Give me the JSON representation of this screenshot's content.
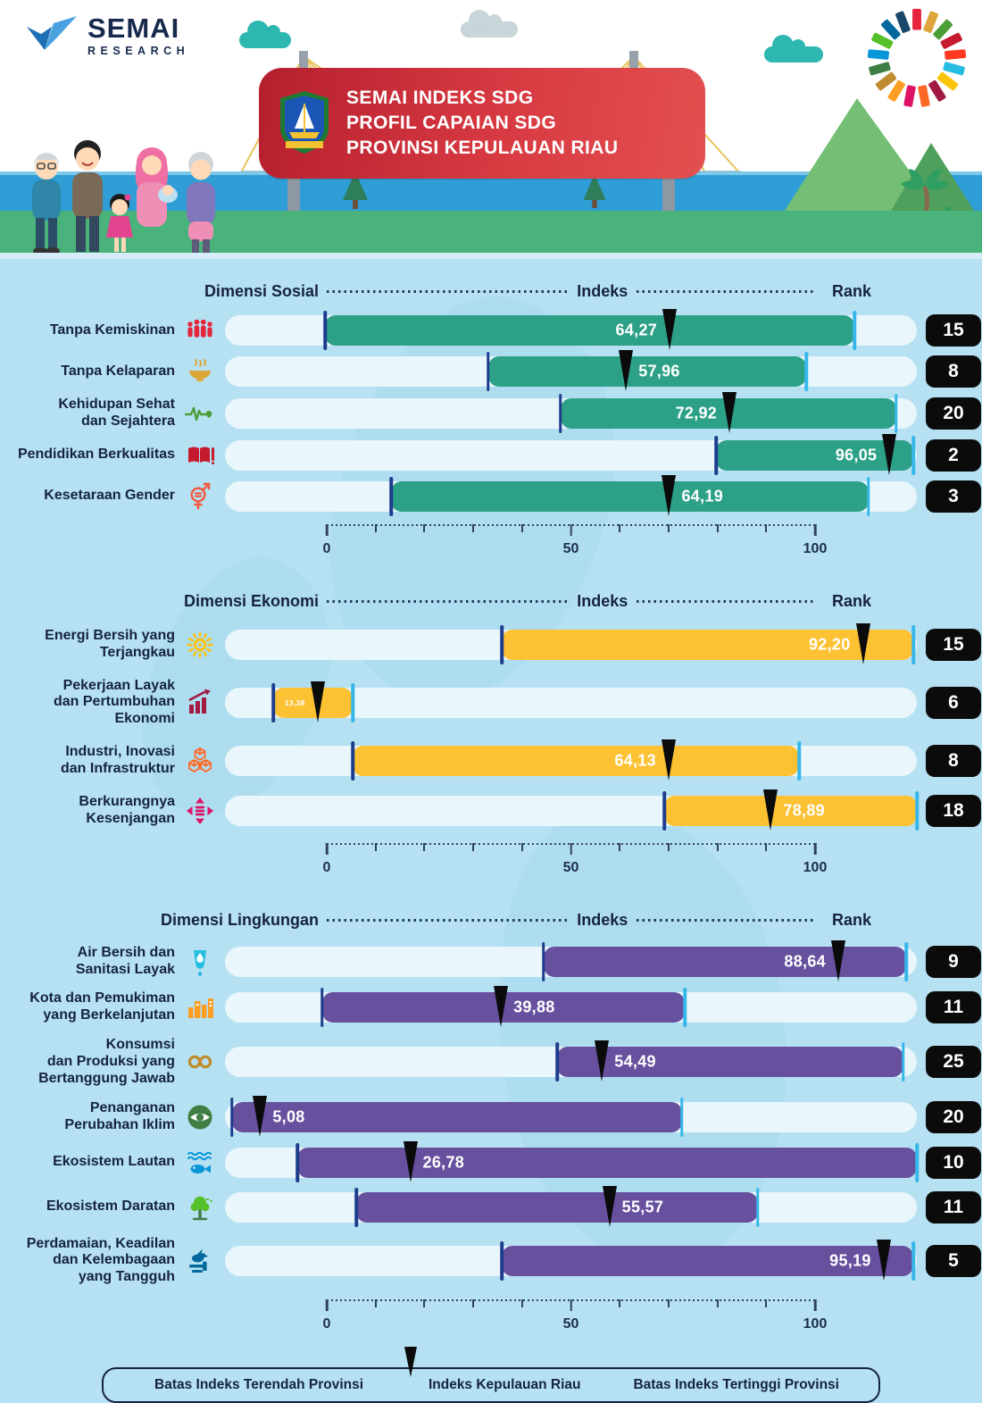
{
  "header": {
    "logo": {
      "title": "SEMAI",
      "subtitle": "RESEARCH"
    },
    "banner": {
      "lines": [
        "SEMAI INDEKS SDG",
        "PROFIL CAPAIAN SDG",
        "PROVINSI KEPULAUAN RIAU"
      ]
    }
  },
  "colors": {
    "page_bg": "#b5e1f2",
    "track": "#e9f6fb",
    "social_bar": "#2da188",
    "economy_bar": "#fcc233",
    "environment_bar": "#67519f",
    "low_tick": "#1e3c8c",
    "high_tick": "#36b7ea",
    "marker": "#0b0b0b",
    "badge_bg": "#0b0b0b",
    "banner_red": "#d83a42",
    "text_dark": "#16233f"
  },
  "legend": [
    {
      "icon": "low-tick-swatch",
      "label": "Batas Indeks Terendah Provinsi"
    },
    {
      "icon": "riau-marker-swatch",
      "label": "Indeks Kepulauan Riau"
    },
    {
      "icon": "high-tick-swatch",
      "label": "Batas Indeks Tertinggi Provinsi"
    }
  ],
  "chart_data": [
    {
      "type": "bar",
      "id": "sosial",
      "title": "Dimensi Sosial",
      "index_label": "Indeks",
      "rank_label": "Rank",
      "bar_color": "#2da188",
      "axis": {
        "min": 0,
        "max": 100,
        "tick_labels": [
          0,
          50,
          100
        ],
        "minor_step": 10
      },
      "rows": [
        {
          "label_lines": [
            "Tanpa Kemiskinan"
          ],
          "icon": "people-icon",
          "value": 64.27,
          "value_label": "64,27",
          "range_min": 14.5,
          "range_max": 91,
          "rank": "15",
          "value_side": "left"
        },
        {
          "label_lines": [
            "Tanpa Kelaparan"
          ],
          "icon": "bowl-icon",
          "value": 57.96,
          "value_label": "57,96",
          "range_min": 38,
          "range_max": 84,
          "rank": "8",
          "value_side": "right"
        },
        {
          "label_lines": [
            "Kehidupan Sehat",
            "dan Sejahtera"
          ],
          "icon": "heartbeat-icon",
          "value": 72.92,
          "value_label": "72,92",
          "range_min": 48.5,
          "range_max": 97,
          "rank": "20",
          "value_side": "left"
        },
        {
          "label_lines": [
            "Pendidikan Berkualitas"
          ],
          "icon": "book-icon",
          "value": 96.05,
          "value_label": "96,05",
          "range_min": 71,
          "range_max": 99.5,
          "rank": "2",
          "value_side": "left"
        },
        {
          "label_lines": [
            "Kesetaraan Gender"
          ],
          "icon": "gender-icon",
          "value": 64.19,
          "value_label": "64,19",
          "range_min": 24,
          "range_max": 93,
          "rank": "3",
          "value_side": "right"
        }
      ]
    },
    {
      "type": "bar",
      "id": "ekonomi",
      "title": "Dimensi Ekonomi",
      "index_label": "Indeks",
      "rank_label": "Rank",
      "bar_color": "#fcc233",
      "axis": {
        "min": 0,
        "max": 100,
        "tick_labels": [
          0,
          50,
          100
        ],
        "minor_step": 10
      },
      "rows": [
        {
          "label_lines": [
            "Energi Bersih yang",
            "Terjangkau"
          ],
          "icon": "sun-icon",
          "value": 92.2,
          "value_label": "92,20",
          "range_min": 40,
          "range_max": 99.5,
          "rank": "15",
          "value_side": "left"
        },
        {
          "label_lines": [
            "Pekerjaan Layak",
            "dan Pertumbuhan",
            "Ekonomi"
          ],
          "icon": "growth-chart-icon",
          "value": 13.38,
          "value_label": "13,38",
          "range_min": 7,
          "range_max": 18.5,
          "rank": "6",
          "value_side": "left",
          "small_label": true
        },
        {
          "label_lines": [
            "Industri, Inovasi",
            "dan Infrastruktur"
          ],
          "icon": "cubes-icon",
          "value": 64.13,
          "value_label": "64,13",
          "range_min": 18.5,
          "range_max": 83,
          "rank": "8",
          "value_side": "left"
        },
        {
          "label_lines": [
            "Berkurangnya",
            "Kesenjangan"
          ],
          "icon": "equality-arrows-icon",
          "value": 78.89,
          "value_label": "78,89",
          "range_min": 63.5,
          "range_max": 100,
          "rank": "18",
          "value_side": "right"
        }
      ]
    },
    {
      "type": "bar",
      "id": "lingkungan",
      "title": "Dimensi Lingkungan",
      "index_label": "Indeks",
      "rank_label": "Rank",
      "bar_color": "#67519f",
      "axis": {
        "min": 0,
        "max": 100,
        "tick_labels": [
          0,
          50,
          100
        ],
        "minor_step": 10
      },
      "rows": [
        {
          "label_lines": [
            "Air Bersih dan",
            "Sanitasi Layak"
          ],
          "icon": "water-drop-icon",
          "value": 88.64,
          "value_label": "88,64",
          "range_min": 46,
          "range_max": 98.5,
          "rank": "9",
          "value_side": "left"
        },
        {
          "label_lines": [
            "Kota dan Pemukiman",
            "yang Berkelanjutan"
          ],
          "icon": "city-icon",
          "value": 39.88,
          "value_label": "39,88",
          "range_min": 14,
          "range_max": 66.5,
          "rank": "11",
          "value_side": "right"
        },
        {
          "label_lines": [
            "Konsumsi",
            "dan Produksi yang",
            "Bertanggung Jawab"
          ],
          "icon": "infinity-icon",
          "value": 54.49,
          "value_label": "54,49",
          "range_min": 48,
          "range_max": 98,
          "rank": "25",
          "value_side": "right"
        },
        {
          "label_lines": [
            "Penanganan",
            "Perubahan Iklim"
          ],
          "icon": "climate-eye-icon",
          "value": 5.08,
          "value_label": "5,08",
          "range_min": 1,
          "range_max": 66,
          "rank": "20",
          "value_side": "right"
        },
        {
          "label_lines": [
            "Ekosistem Lautan"
          ],
          "icon": "fish-icon",
          "value": 26.78,
          "value_label": "26,78",
          "range_min": 10.5,
          "range_max": 100,
          "rank": "10",
          "value_side": "right"
        },
        {
          "label_lines": [
            "Ekosistem Daratan"
          ],
          "icon": "tree-icon",
          "value": 55.57,
          "value_label": "55,57",
          "range_min": 19,
          "range_max": 77,
          "rank": "11",
          "value_side": "right"
        },
        {
          "label_lines": [
            "Perdamaian, Keadilan",
            "dan Kelembagaan",
            "yang Tangguh"
          ],
          "icon": "bird-icon",
          "value": 95.19,
          "value_label": "95,19",
          "range_min": 40,
          "range_max": 99.5,
          "rank": "5",
          "value_side": "left"
        }
      ]
    }
  ]
}
